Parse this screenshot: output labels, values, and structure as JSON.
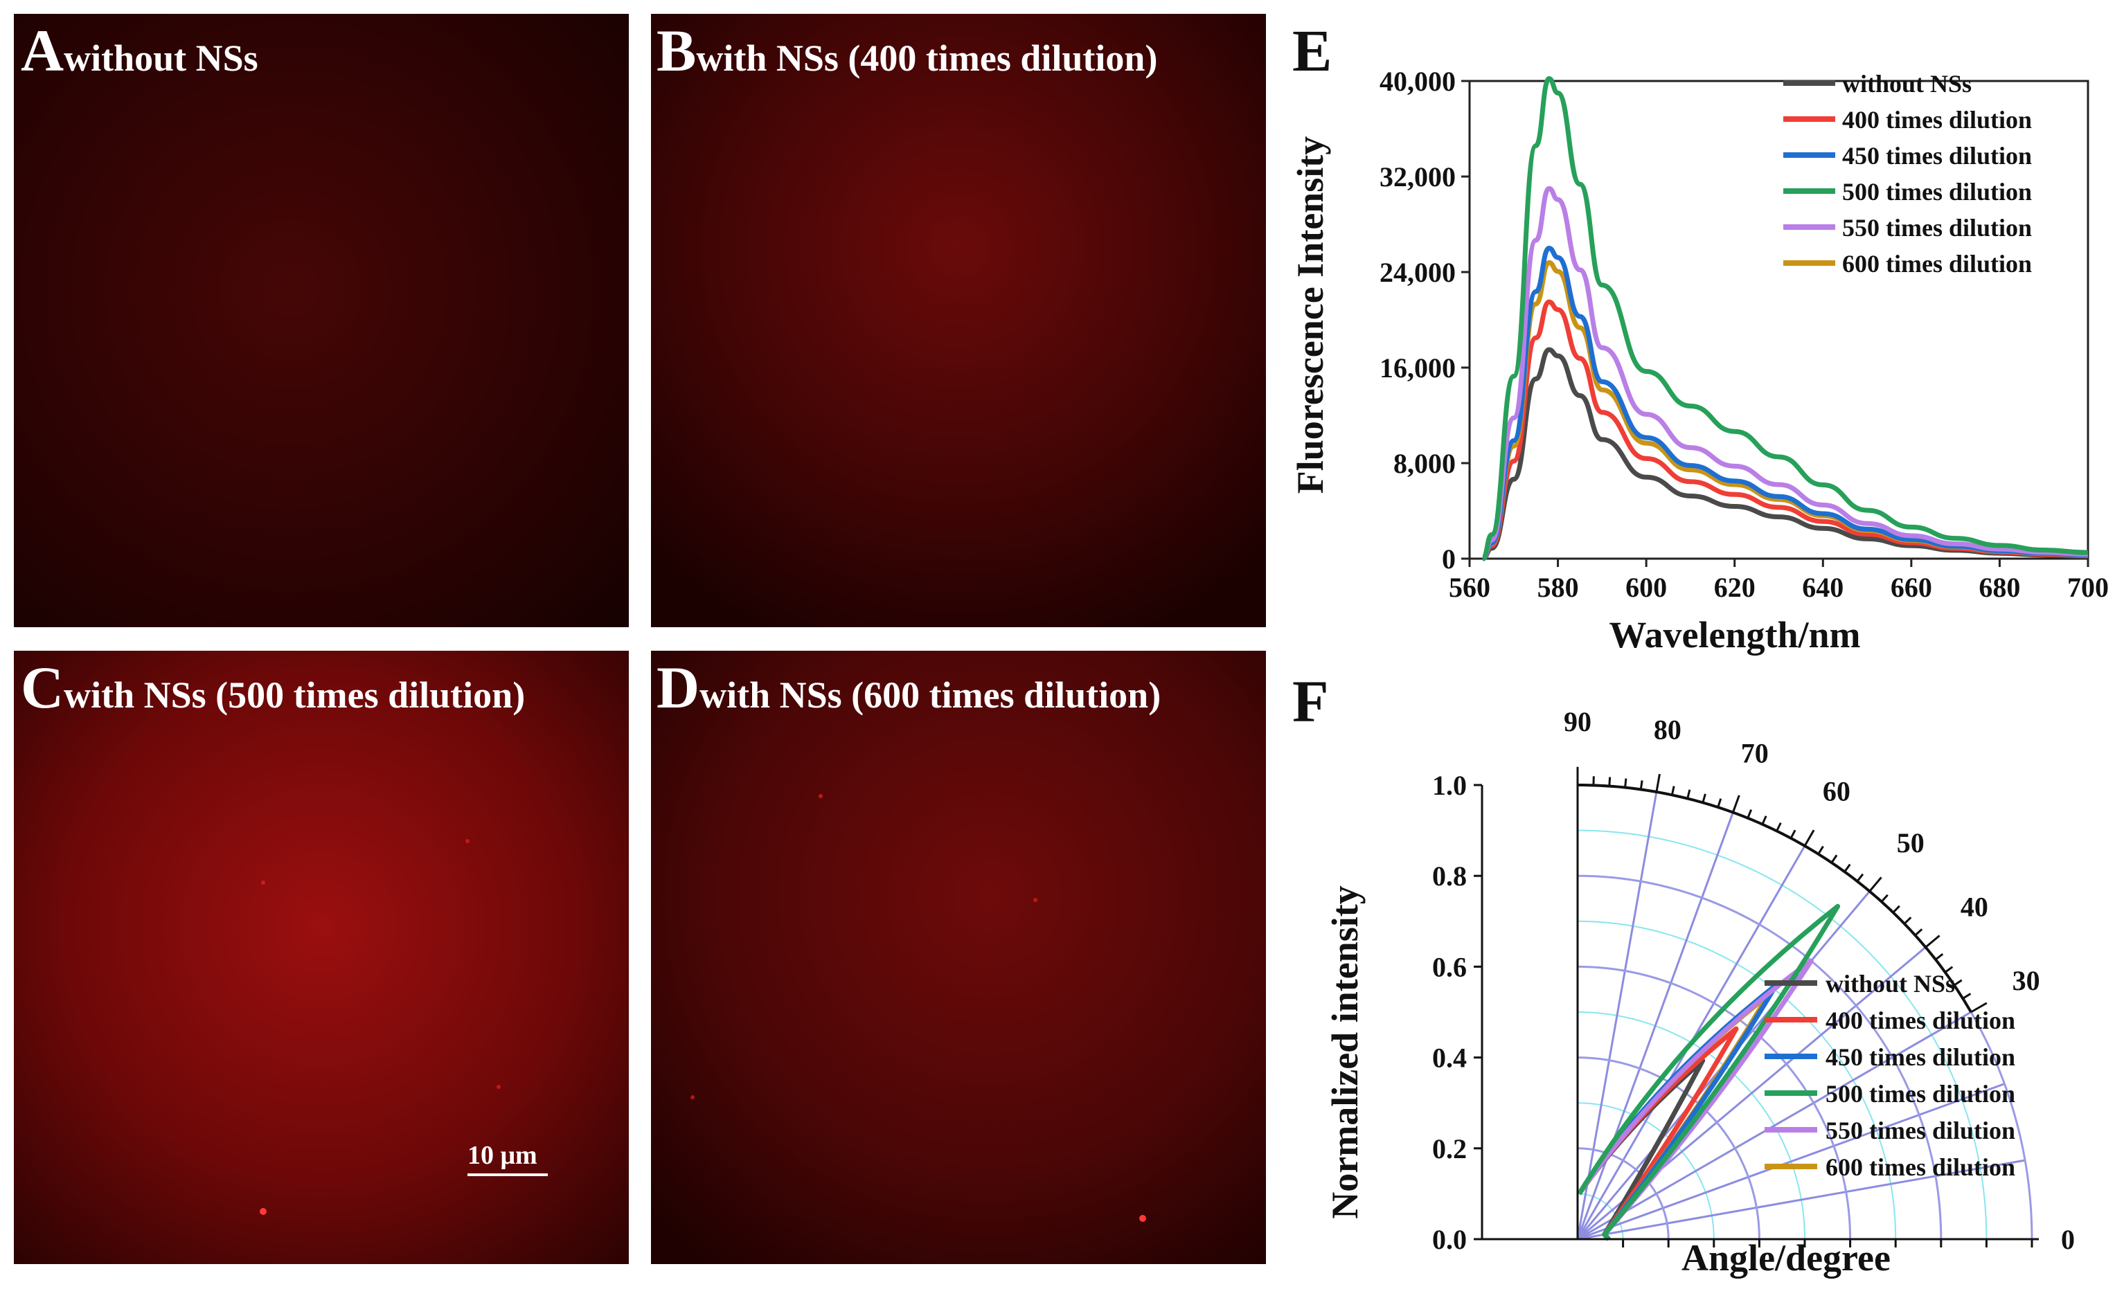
{
  "panels": {
    "A": {
      "letter": "A",
      "title": "without NSs"
    },
    "B": {
      "letter": "B",
      "title": "with NSs (400 times dilution)"
    },
    "C": {
      "letter": "C",
      "title": "with NSs (500 times dilution)",
      "scale_bar": "10 μm"
    },
    "D": {
      "letter": "D",
      "title": "with NSs (600 times dilution)"
    },
    "E": {
      "letter": "E"
    },
    "F": {
      "letter": "F"
    }
  },
  "chart_data": [
    {
      "panel": "E",
      "type": "line",
      "xlabel": "Wavelength/nm",
      "ylabel": "Fluorescence Intensity",
      "xlim": [
        560,
        700
      ],
      "ylim": [
        0,
        40000
      ],
      "xticks": [
        "560",
        "580",
        "600",
        "620",
        "640",
        "660",
        "680",
        "700"
      ],
      "yticks": [
        "0",
        "8,000",
        "16,000",
        "24,000",
        "32,000",
        "40,000"
      ],
      "x": [
        563,
        565,
        570,
        575,
        578,
        580,
        585,
        590,
        600,
        610,
        620,
        630,
        640,
        650,
        660,
        670,
        680,
        690,
        700
      ],
      "shape": [
        0.0,
        0.05,
        0.38,
        0.86,
        1.0,
        0.97,
        0.78,
        0.57,
        0.39,
        0.3,
        0.25,
        0.2,
        0.145,
        0.095,
        0.062,
        0.04,
        0.026,
        0.017,
        0.012
      ],
      "series": [
        {
          "name": "without NSs",
          "color": "#4a4a4a",
          "peak": 17500
        },
        {
          "name": "400 times dilution",
          "color": "#ef3e36",
          "peak": 21500
        },
        {
          "name": "450 times dilution",
          "color": "#1f6fd1",
          "peak": 26000
        },
        {
          "name": "500 times dilution",
          "color": "#27a05a",
          "peak": 40200
        },
        {
          "name": "550 times dilution",
          "color": "#b97fe6",
          "peak": 31000
        },
        {
          "name": "600 times dilution",
          "color": "#c99415",
          "peak": 24800
        }
      ]
    },
    {
      "panel": "F",
      "type": "polar",
      "xlabel": "Angle/degree",
      "ylabel": "Normalized intensity",
      "rlim": [
        0,
        1.0
      ],
      "rticks": [
        "0.0",
        "0.2",
        "0.4",
        "0.6",
        "0.8",
        "1.0"
      ],
      "angle_ticks": [
        "0",
        "30",
        "40",
        "50",
        "60",
        "70",
        "80",
        "90"
      ],
      "series": [
        {
          "name": "without NSs",
          "color": "#4a4a4a",
          "peak_r": 0.48,
          "peak_angle": 55
        },
        {
          "name": "400 times dilution",
          "color": "#ef3e36",
          "peak_r": 0.58,
          "peak_angle": 53
        },
        {
          "name": "450 times dilution",
          "color": "#1f6fd1",
          "peak_r": 0.71,
          "peak_angle": 52
        },
        {
          "name": "500 times dilution",
          "color": "#27a05a",
          "peak_r": 0.93,
          "peak_angle": 52
        },
        {
          "name": "550 times dilution",
          "color": "#b97fe6",
          "peak_r": 0.8,
          "peak_angle": 50
        },
        {
          "name": "600 times dilution",
          "color": "#c99415",
          "peak_r": 0.68,
          "peak_angle": 52
        }
      ]
    }
  ]
}
